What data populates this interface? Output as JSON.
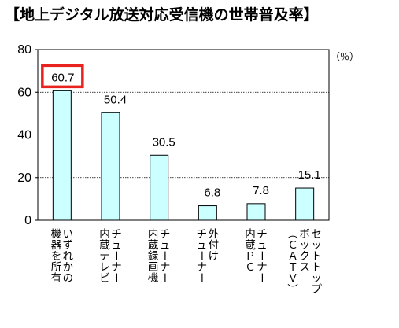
{
  "chart_data": {
    "type": "bar",
    "title": "【地上デジタル放送対応受信機の世帯普及率】",
    "unit": "（％）",
    "categories": [
      [
        "いずれかの",
        "機器を所有"
      ],
      [
        "チューナー",
        "内蔵テレビ"
      ],
      [
        "チューナー",
        "内蔵録画機"
      ],
      [
        "外付け",
        "チューナー"
      ],
      [
        "チューナー",
        "内蔵ＰＣ"
      ],
      [
        "セットトップ",
        "ボックス",
        "（ＣＡＴＶ）"
      ]
    ],
    "values": [
      60.7,
      50.4,
      30.5,
      6.8,
      7.8,
      15.1
    ],
    "value_labels": [
      "60.7",
      "50.4",
      "30.5",
      "6.8",
      "7.8",
      "15.1"
    ],
    "y_ticks": [
      "0",
      "20",
      "40",
      "60",
      "80"
    ],
    "ylim": [
      0,
      80
    ],
    "grid": true,
    "highlighted_label_index": 0,
    "colors": {
      "bar_fill": "#ccffff",
      "bar_stroke": "#000000",
      "highlight": "#e8231f"
    }
  }
}
